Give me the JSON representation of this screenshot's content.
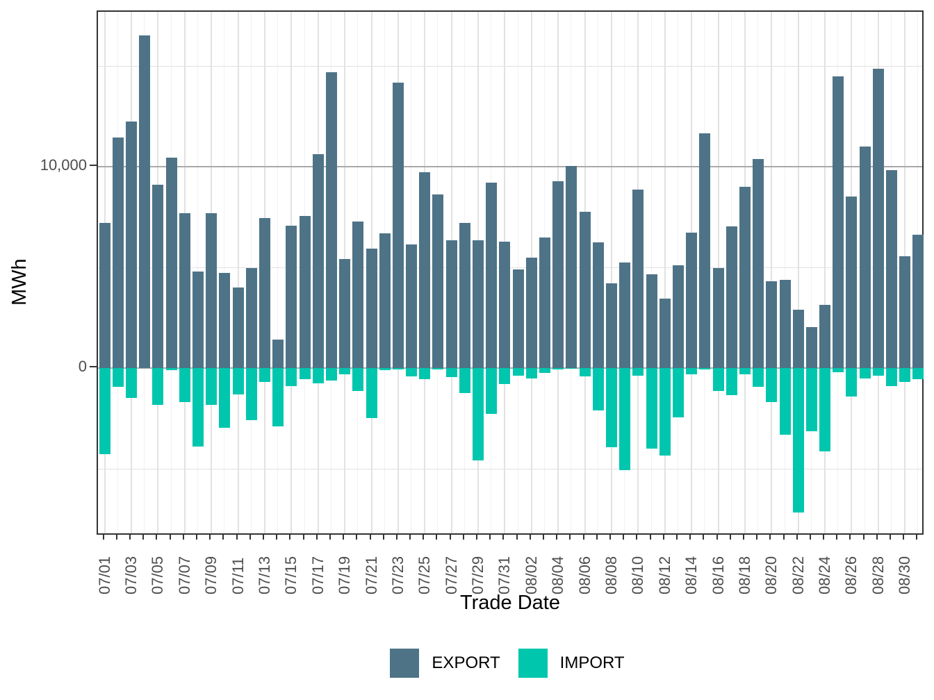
{
  "figure": {
    "background": "#ffffff"
  },
  "axes": {
    "y_title": "MWh",
    "x_title": "Trade Date"
  },
  "legend": {
    "items": [
      {
        "label": "EXPORT",
        "color": "#4e7387"
      },
      {
        "label": "IMPORT",
        "color": "#00c6ae"
      }
    ]
  },
  "chart_data": {
    "type": "bar",
    "title": "",
    "xlabel": "Trade Date",
    "ylabel": "MWh",
    "orientation": "diverging-vertical",
    "grid": "on",
    "legend_position": "bottom",
    "ylim": [
      -8350,
      17690
    ],
    "yticks": [
      {
        "value": 10000,
        "label": "10,000"
      },
      {
        "value": 0,
        "label": "0"
      }
    ],
    "minor_hgrid_values": [
      15000,
      5000,
      -5000
    ],
    "x_label_every": 2,
    "x": [
      "07/01",
      "07/02",
      "07/03",
      "07/04",
      "07/05",
      "07/06",
      "07/07",
      "07/08",
      "07/09",
      "07/10",
      "07/11",
      "07/12",
      "07/13",
      "07/14",
      "07/15",
      "07/16",
      "07/17",
      "07/18",
      "07/19",
      "07/20",
      "07/21",
      "07/22",
      "07/23",
      "07/24",
      "07/25",
      "07/26",
      "07/27",
      "07/28",
      "07/29",
      "07/30",
      "07/31",
      "08/01",
      "08/02",
      "08/03",
      "08/04",
      "08/05",
      "08/06",
      "08/07",
      "08/08",
      "08/09",
      "08/10",
      "08/11",
      "08/12",
      "08/13",
      "08/14",
      "08/15",
      "08/16",
      "08/17",
      "08/18",
      "08/19",
      "08/20",
      "08/21",
      "08/22",
      "08/23",
      "08/24",
      "08/25",
      "08/26",
      "08/27",
      "08/28",
      "08/29",
      "08/30",
      "08/31"
    ],
    "series": [
      {
        "name": "EXPORT",
        "color": "#4e7387",
        "values": [
          7220,
          11460,
          12230,
          16520,
          9090,
          10450,
          7680,
          4780,
          7680,
          4720,
          3990,
          4960,
          7460,
          1410,
          7080,
          7550,
          10620,
          14700,
          5410,
          7290,
          5930,
          6690,
          14160,
          6140,
          9740,
          8630,
          6350,
          7210,
          6360,
          9200,
          6280,
          4910,
          5470,
          6480,
          9260,
          10030,
          7750,
          6250,
          4210,
          5250,
          8870,
          4640,
          3440,
          5100,
          6740,
          11670,
          4970,
          7050,
          9010,
          10380,
          4300,
          4370,
          2900,
          2050,
          3150,
          14500,
          8520,
          11010,
          14850,
          9830,
          5550,
          6630
        ]
      },
      {
        "name": "IMPORT",
        "color": "#00c6ae",
        "values": [
          -4270,
          -930,
          -1480,
          0,
          -1830,
          -120,
          -1710,
          -3900,
          -1850,
          -2980,
          -1300,
          -2600,
          -700,
          -2890,
          -910,
          -550,
          -760,
          -640,
          -330,
          -1160,
          -2480,
          -100,
          -60,
          -410,
          -560,
          -70,
          -470,
          -1250,
          -4590,
          -2290,
          -790,
          -380,
          -520,
          -240,
          -90,
          -50,
          -410,
          -2100,
          -3930,
          -5090,
          -380,
          -4010,
          -4340,
          -2450,
          -300,
          -70,
          -1160,
          -1340,
          -310,
          -930,
          -1690,
          -3310,
          -7170,
          -3140,
          -4150,
          -210,
          -1410,
          -520,
          -380,
          -900,
          -700,
          -540
        ]
      }
    ]
  }
}
